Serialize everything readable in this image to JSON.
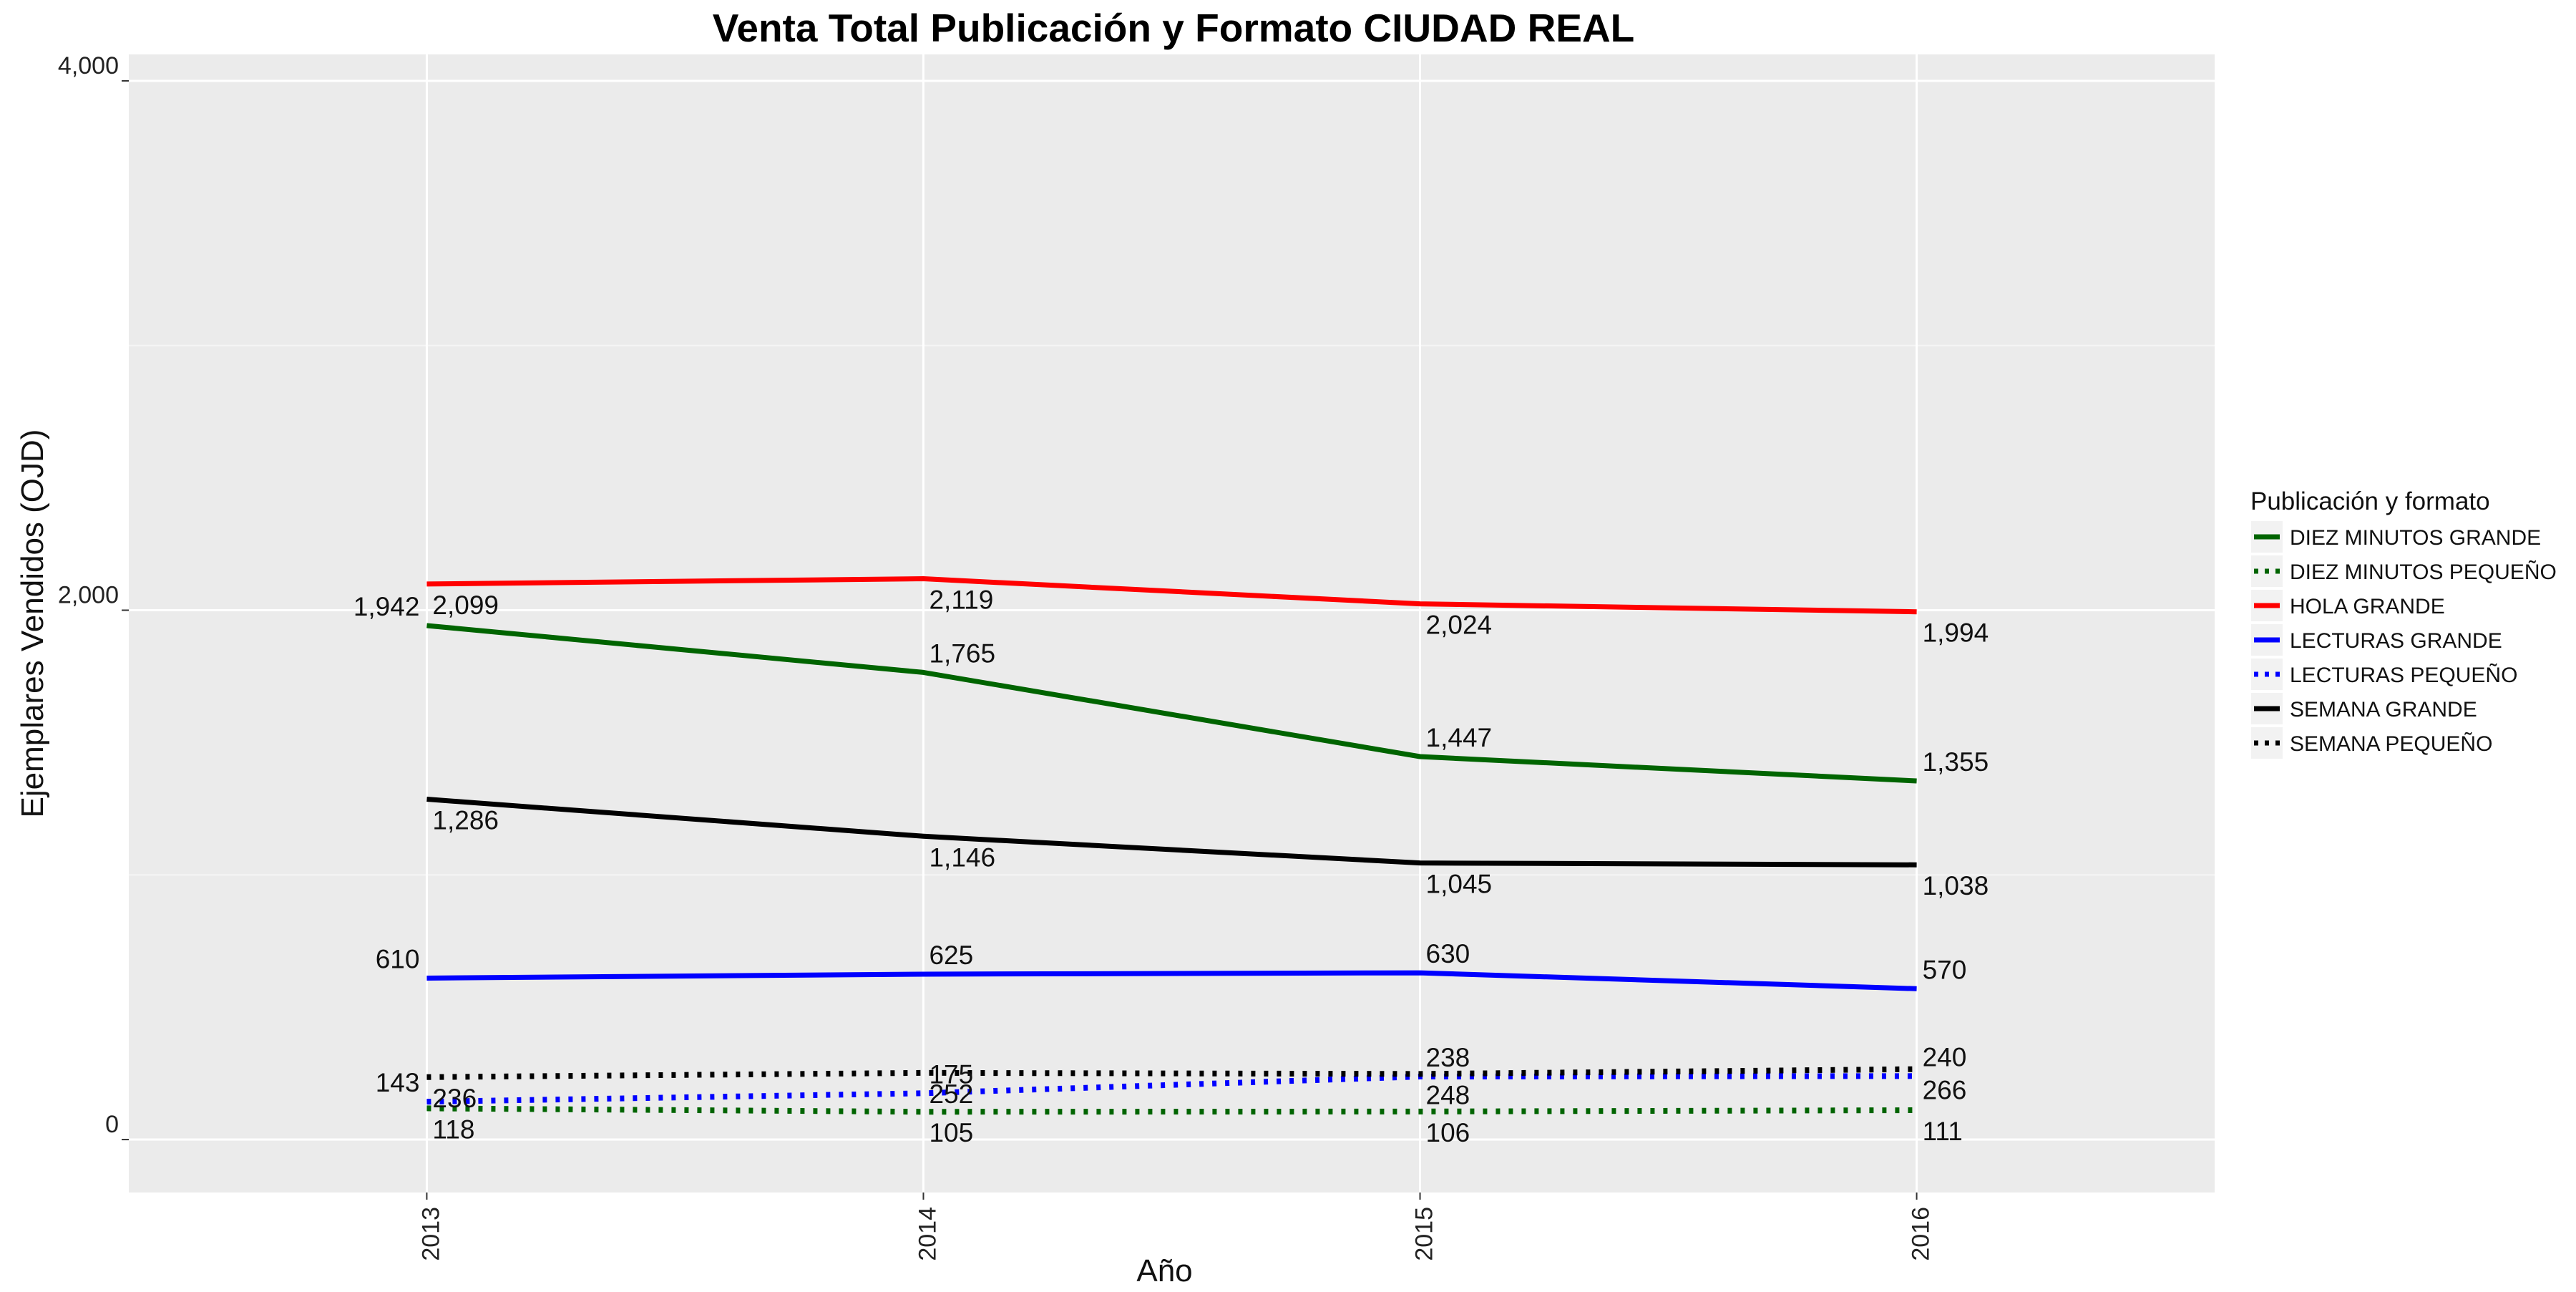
{
  "chart_data": {
    "type": "line",
    "title": "Venta Total Publicación y Formato  CIUDAD REAL",
    "xlabel": "Año",
    "ylabel": "Ejemplares Vendidos (OJD)",
    "x": [
      "2013",
      "2014",
      "2015",
      "2016"
    ],
    "xlim": [
      2012.4,
      2016.6
    ],
    "ylim": [
      -200,
      4100
    ],
    "yticks": [
      0,
      2000,
      4000
    ],
    "ytick_labels": [
      "0",
      "2,000",
      "4,000"
    ],
    "grid": true,
    "legend": {
      "title": "Publicación y formato",
      "position": "right"
    },
    "series": [
      {
        "name": "DIEZ MINUTOS GRANDE",
        "color": "#006400",
        "dash": "solid",
        "values": [
          1942,
          1765,
          1447,
          1355
        ],
        "labels": [
          "1,942",
          "1,765",
          "1,447",
          "1,355"
        ]
      },
      {
        "name": "DIEZ MINUTOS PEQUEÑO",
        "color": "#006400",
        "dash": "dotted",
        "values": [
          118,
          105,
          106,
          111
        ],
        "labels": [
          "118",
          "105",
          "106",
          "111"
        ]
      },
      {
        "name": "HOLA GRANDE",
        "color": "#ff0000",
        "dash": "solid",
        "values": [
          2099,
          2119,
          2024,
          1994
        ],
        "labels": [
          "2,099",
          "2,119",
          "2,024",
          "1,994"
        ]
      },
      {
        "name": "LECTURAS GRANDE",
        "color": "#0000ff",
        "dash": "solid",
        "values": [
          610,
          625,
          630,
          570
        ],
        "labels": [
          "610",
          "625",
          "630",
          "570"
        ]
      },
      {
        "name": "LECTURAS PEQUEÑO",
        "color": "#0000ff",
        "dash": "dotted",
        "values": [
          143,
          175,
          238,
          240
        ],
        "labels": [
          "143",
          "175",
          "238",
          "240"
        ]
      },
      {
        "name": "SEMANA GRANDE",
        "color": "#000000",
        "dash": "solid",
        "values": [
          1286,
          1146,
          1045,
          1038
        ],
        "labels": [
          "1,286",
          "1,146",
          "1,045",
          "1,038"
        ]
      },
      {
        "name": "SEMANA PEQUEÑO",
        "color": "#000000",
        "dash": "dotted",
        "values": [
          236,
          252,
          248,
          266
        ],
        "labels": [
          "236",
          "252",
          "248",
          "266"
        ]
      }
    ]
  }
}
